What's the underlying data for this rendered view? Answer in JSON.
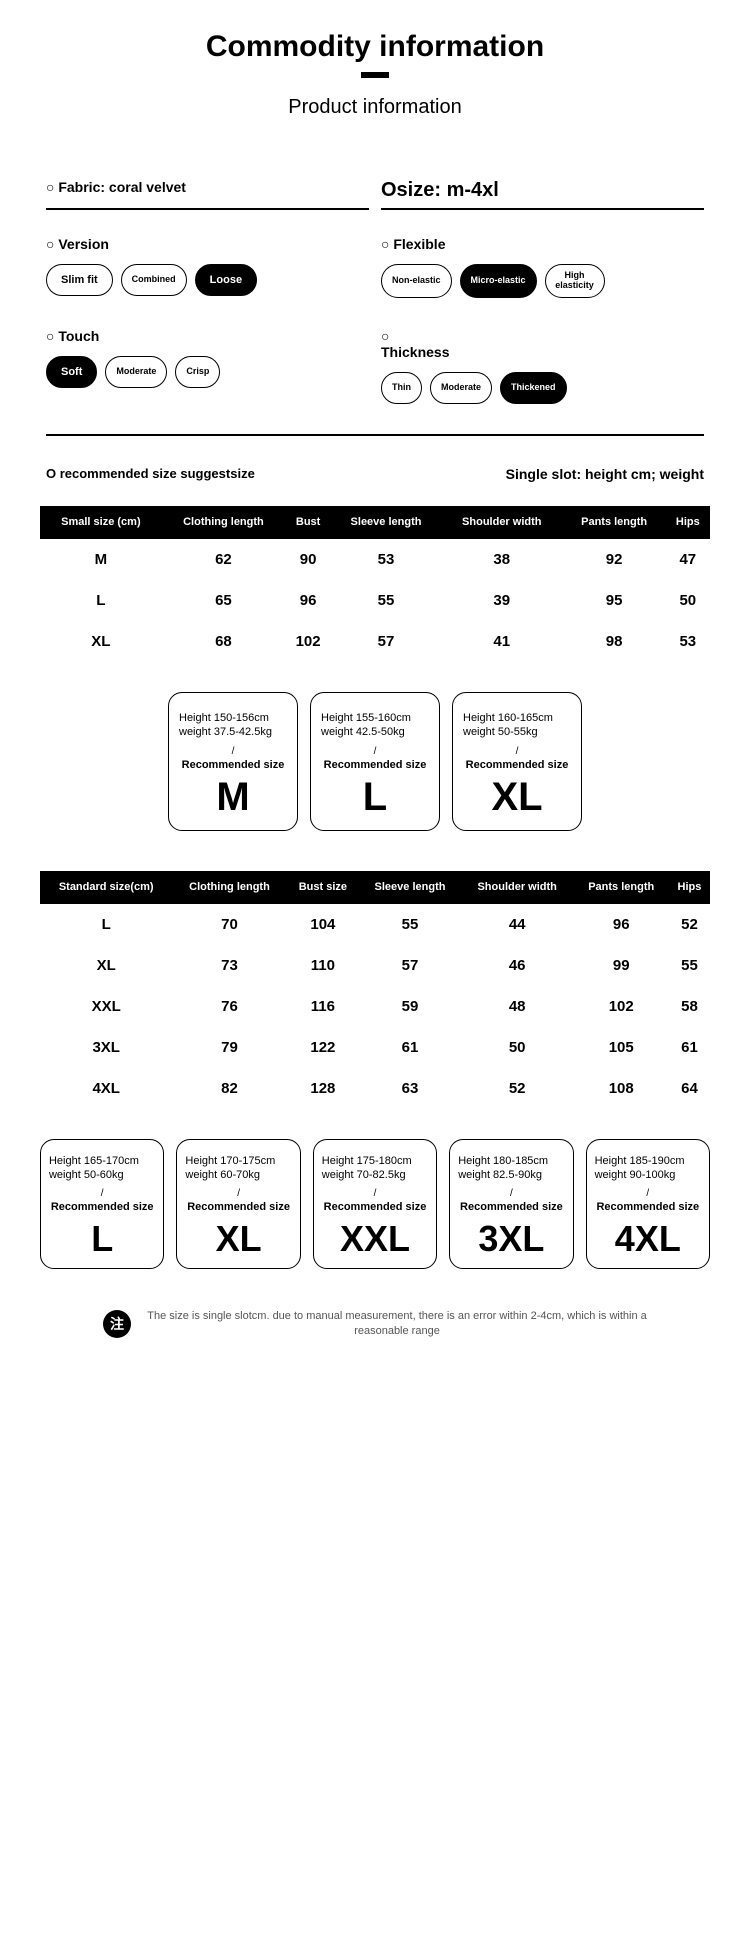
{
  "header": {
    "main_title": "Commodity information",
    "sub_title": "Product information"
  },
  "specs": {
    "fabric_label": "○ Fabric: coral velvet",
    "size_label": "Osize: m-4xl",
    "version": {
      "label": "○ Version",
      "options": [
        "Slim fit",
        "Combined",
        "Loose"
      ],
      "selected": 2
    },
    "flexible": {
      "label": "○ Flexible",
      "options": [
        "Non-elastic",
        "Micro-elastic",
        "High elasticity"
      ],
      "selected": 1
    },
    "touch": {
      "label": "○ Touch",
      "options": [
        "Soft",
        "Moderate",
        "Crisp"
      ],
      "selected": 0
    },
    "thickness": {
      "label_prefix": "○",
      "label": "Thickness",
      "options": [
        "Thin",
        "Moderate",
        "Thickened"
      ],
      "selected": 2
    }
  },
  "recommend": {
    "left_heading": "O recommended size suggestsize",
    "right_heading": "Single slot: height cm; weight"
  },
  "table_small": {
    "columns": [
      "Small size (cm)",
      "Clothing length",
      "Bust",
      "Sleeve length",
      "Shoulder width",
      "Pants length",
      "Hips"
    ],
    "rows": [
      [
        "M",
        "62",
        "90",
        "53",
        "38",
        "92",
        "47"
      ],
      [
        "L",
        "65",
        "96",
        "55",
        "39",
        "95",
        "50"
      ],
      [
        "XL",
        "68",
        "102",
        "57",
        "41",
        "98",
        "53"
      ]
    ]
  },
  "cards_small": [
    {
      "height": "Height 150-156cm",
      "weight": "weight 37.5-42.5kg",
      "rec": "Recommended size",
      "size": "M"
    },
    {
      "height": "Height 155-160cm",
      "weight": "weight 42.5-50kg",
      "rec": "Recommended size",
      "size": "L"
    },
    {
      "height": "Height 160-165cm",
      "weight": "weight 50-55kg",
      "rec": "Recommended size",
      "size": "XL"
    }
  ],
  "table_std": {
    "columns": [
      "Standard size(cm)",
      "Clothing length",
      "Bust size",
      "Sleeve length",
      "Shoulder width",
      "Pants length",
      "Hips"
    ],
    "rows": [
      [
        "L",
        "70",
        "104",
        "55",
        "44",
        "96",
        "52"
      ],
      [
        "XL",
        "73",
        "110",
        "57",
        "46",
        "99",
        "55"
      ],
      [
        "XXL",
        "76",
        "116",
        "59",
        "48",
        "102",
        "58"
      ],
      [
        "3XL",
        "79",
        "122",
        "61",
        "50",
        "105",
        "61"
      ],
      [
        "4XL",
        "82",
        "128",
        "63",
        "52",
        "108",
        "64"
      ]
    ]
  },
  "cards_std": [
    {
      "height": "Height 165-170cm",
      "weight": "weight 50-60kg",
      "rec": "Recommended size",
      "size": "L"
    },
    {
      "height": "Height 170-175cm",
      "weight": "weight 60-70kg",
      "rec": "Recommended size",
      "size": "XL"
    },
    {
      "height": "Height 175-180cm",
      "weight": "weight 70-82.5kg",
      "rec": "Recommended size",
      "size": "XXL"
    },
    {
      "height": "Height 180-185cm",
      "weight": "weight 82.5-90kg",
      "rec": "Recommended size",
      "size": "3XL"
    },
    {
      "height": "Height 185-190cm",
      "weight": "weight 90-100kg",
      "rec": "Recommended size",
      "size": "4XL"
    }
  ],
  "footnote": {
    "badge": "注",
    "text": "The size is single slotcm. due to manual measurement, there is an error within 2-4cm, which is within a reasonable range"
  }
}
